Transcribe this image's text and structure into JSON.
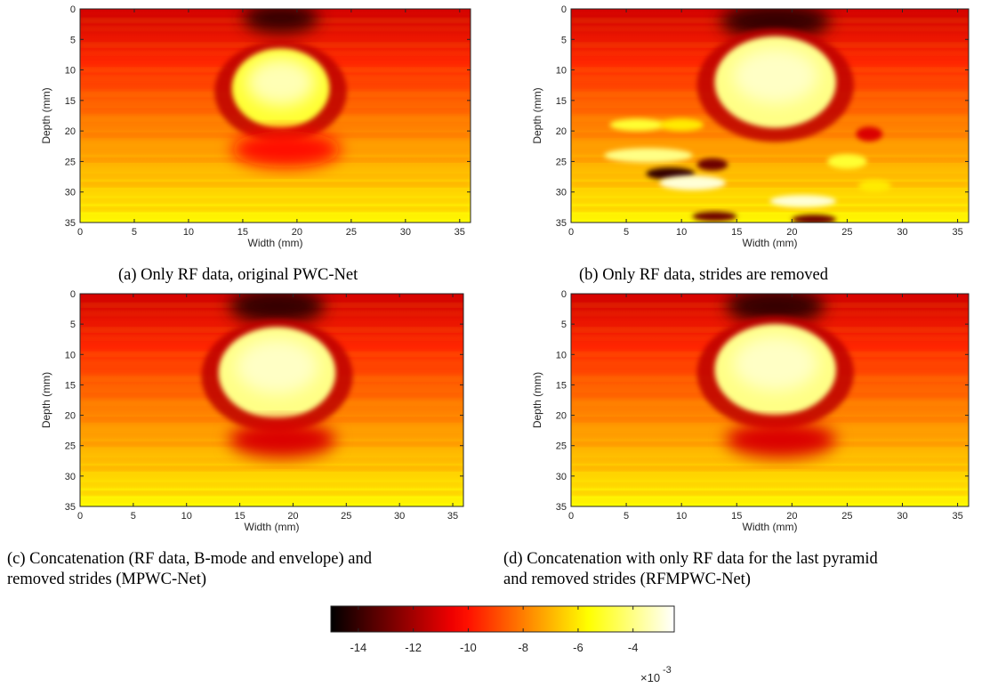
{
  "chart_data": [
    {
      "type": "heatmap",
      "panel": "a",
      "caption": "(a) Only RF data, original PWC-Net",
      "xlabel": "Width (mm)",
      "ylabel": "Depth (mm)",
      "xlim": [
        0,
        36
      ],
      "ylim": [
        0,
        35
      ],
      "xticks": [
        0,
        5,
        10,
        15,
        20,
        25,
        30,
        35
      ],
      "yticks": [
        0,
        5,
        10,
        15,
        20,
        25,
        30,
        35
      ],
      "features": [
        {
          "kind": "dark_region",
          "x": 18.5,
          "y": 1.5,
          "rx": 3.5,
          "ry": 2.5,
          "value": -14
        },
        {
          "kind": "bright_inclusion",
          "x": 18.5,
          "y": 13,
          "rx": 4.5,
          "ry": 6.5,
          "value": -5
        },
        {
          "kind": "dark_band",
          "x": 19,
          "y": 23,
          "rx": 5,
          "ry": 3,
          "value": -10
        }
      ]
    },
    {
      "type": "heatmap",
      "panel": "b",
      "caption": "(b) Only RF data, strides are removed",
      "xlabel": "Width (mm)",
      "ylabel": "Depth (mm)",
      "xlim": [
        0,
        36
      ],
      "ylim": [
        0,
        35
      ],
      "xticks": [
        0,
        5,
        10,
        15,
        20,
        25,
        30,
        35
      ],
      "yticks": [
        0,
        5,
        10,
        15,
        20,
        25,
        30,
        35
      ],
      "features": [
        {
          "kind": "dark_region",
          "x": 18.5,
          "y": 2,
          "rx": 5,
          "ry": 3,
          "value": -14
        },
        {
          "kind": "bright_inclusion",
          "x": 18.5,
          "y": 12,
          "rx": 5.5,
          "ry": 7.5,
          "value": -4
        },
        {
          "kind": "artifacts",
          "x": 13,
          "y": 27,
          "value": -14
        }
      ]
    },
    {
      "type": "heatmap",
      "panel": "c",
      "caption": "(c) Concatenation (RF data, B-mode and envelope) and removed strides (MPWC-Net)",
      "xlabel": "Width (mm)",
      "ylabel": "Depth (mm)",
      "xlim": [
        0,
        36
      ],
      "ylim": [
        0,
        35
      ],
      "xticks": [
        0,
        5,
        10,
        15,
        20,
        25,
        30,
        35
      ],
      "yticks": [
        0,
        5,
        10,
        15,
        20,
        25,
        30,
        35
      ],
      "features": [
        {
          "kind": "dark_region",
          "x": 18.5,
          "y": 2,
          "rx": 4.5,
          "ry": 3,
          "value": -14
        },
        {
          "kind": "bright_inclusion",
          "x": 18.5,
          "y": 13,
          "rx": 5.5,
          "ry": 7.5,
          "value": -4
        },
        {
          "kind": "dark_band",
          "x": 19,
          "y": 24,
          "rx": 5,
          "ry": 3,
          "value": -11
        }
      ]
    },
    {
      "type": "heatmap",
      "panel": "d",
      "caption": "(d) Concatenation with only RF data for the last pyramid and removed strides (RFMPWC-Net)",
      "xlabel": "Width (mm)",
      "ylabel": "Depth (mm)",
      "xlim": [
        0,
        36
      ],
      "ylim": [
        0,
        35
      ],
      "xticks": [
        0,
        5,
        10,
        15,
        20,
        25,
        30,
        35
      ],
      "yticks": [
        0,
        5,
        10,
        15,
        20,
        25,
        30,
        35
      ],
      "features": [
        {
          "kind": "dark_region",
          "x": 18.5,
          "y": 2,
          "rx": 4.5,
          "ry": 3,
          "value": -14
        },
        {
          "kind": "bright_inclusion",
          "x": 18.5,
          "y": 12.5,
          "rx": 5.5,
          "ry": 7.5,
          "value": -4
        },
        {
          "kind": "dark_band",
          "x": 19,
          "y": 24,
          "rx": 5,
          "ry": 3,
          "value": -11
        }
      ]
    }
  ],
  "colorbar": {
    "colormap": "hot",
    "range": [
      -15,
      -2.5
    ],
    "ticks": [
      "-14",
      "-12",
      "-10",
      "-8",
      "-6",
      "-4"
    ],
    "tick_values": [
      -14,
      -12,
      -10,
      -8,
      -6,
      -4
    ],
    "exponent_base": "×10",
    "exponent_power": "-3"
  },
  "captions": {
    "a": "(a) Only RF data, original PWC-Net",
    "b": "(b) Only RF data, strides are removed",
    "c_line1": "(c) Concatenation (RF data, B-mode and envelope) and",
    "c_line2": "removed strides (MPWC-Net)",
    "d_line1": "(d) Concatenation with only RF data for the last pyramid",
    "d_line2": "and removed strides (RFMPWC-Net)"
  }
}
